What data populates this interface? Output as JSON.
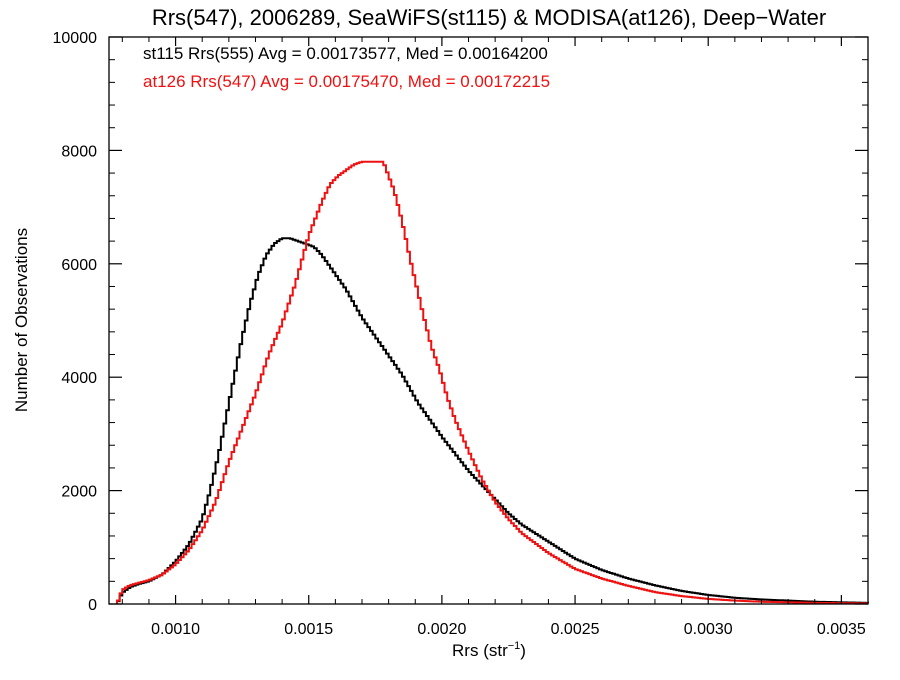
{
  "chart_data": {
    "type": "line",
    "title": "Rrs(547), 2006289, SeaWiFS(st115) & MODISA(at126), Deep−Water",
    "xlabel_main": "Rrs (str",
    "xlabel_sup": "−1",
    "xlabel_close": ")",
    "ylabel": "Number of Observations",
    "xlim": [
      0.00075,
      0.0036
    ],
    "ylim": [
      0,
      10000
    ],
    "x_ticks": [
      0.001,
      0.0015,
      0.002,
      0.0025,
      0.003,
      0.0035
    ],
    "x_tick_labels": [
      "0.0010",
      "0.0015",
      "0.0020",
      "0.0025",
      "0.0030",
      "0.0035"
    ],
    "y_ticks": [
      0,
      2000,
      4000,
      6000,
      8000,
      10000
    ],
    "y_tick_labels": [
      "0",
      "2000",
      "4000",
      "6000",
      "8000",
      "10000"
    ],
    "bin_width": 1e-05,
    "series": [
      {
        "name": "st115 Rrs(555)",
        "color": "#000000",
        "annotation": "st115 Rrs(555) Avg = 0.00173577, Med = 0.00164200",
        "x": [
          0.00078,
          0.0008,
          0.00083,
          0.00086,
          0.0009,
          0.00095,
          0.001,
          0.00105,
          0.0011,
          0.00113,
          0.00116,
          0.00119,
          0.00122,
          0.00125,
          0.00128,
          0.00131,
          0.00134,
          0.00137,
          0.0014,
          0.00143,
          0.00146,
          0.00149,
          0.00152,
          0.00155,
          0.00158,
          0.00161,
          0.00164,
          0.00167,
          0.0017,
          0.00173,
          0.00176,
          0.00179,
          0.00182,
          0.00185,
          0.00188,
          0.00191,
          0.00194,
          0.00197,
          0.002,
          0.00205,
          0.0021,
          0.00215,
          0.0022,
          0.00225,
          0.0023,
          0.0024,
          0.0025,
          0.0026,
          0.0027,
          0.0028,
          0.0029,
          0.003,
          0.0031,
          0.0032,
          0.0033,
          0.0034,
          0.0035,
          0.0036
        ],
        "y": [
          0,
          200,
          300,
          350,
          400,
          520,
          750,
          1050,
          1500,
          2000,
          2600,
          3300,
          4000,
          4700,
          5300,
          5800,
          6150,
          6350,
          6450,
          6450,
          6400,
          6350,
          6300,
          6150,
          5950,
          5750,
          5550,
          5300,
          5050,
          4850,
          4650,
          4450,
          4250,
          4050,
          3800,
          3550,
          3350,
          3150,
          2950,
          2650,
          2350,
          2100,
          1850,
          1600,
          1400,
          1100,
          800,
          600,
          450,
          330,
          230,
          160,
          110,
          80,
          60,
          40,
          30,
          20
        ]
      },
      {
        "name": "at126 Rrs(547)",
        "color": "#ee1111",
        "annotation": "at126 Rrs(547) Avg = 0.00175470, Med = 0.00172215",
        "x": [
          0.00078,
          0.0008,
          0.00083,
          0.00086,
          0.0009,
          0.00095,
          0.001,
          0.00105,
          0.0011,
          0.00115,
          0.0012,
          0.00125,
          0.0013,
          0.00135,
          0.0014,
          0.00145,
          0.0015,
          0.00155,
          0.00158,
          0.00161,
          0.00164,
          0.00167,
          0.0017,
          0.00173,
          0.00176,
          0.00178,
          0.0018,
          0.00182,
          0.00184,
          0.00186,
          0.00188,
          0.0019,
          0.00193,
          0.00196,
          0.00199,
          0.00202,
          0.00205,
          0.0021,
          0.00215,
          0.0022,
          0.00225,
          0.0023,
          0.0024,
          0.0025,
          0.0026,
          0.0027,
          0.0028,
          0.0029,
          0.003,
          0.0031,
          0.0032,
          0.0033,
          0.0034,
          0.0035,
          0.0036
        ],
        "y": [
          0,
          250,
          330,
          370,
          420,
          520,
          700,
          950,
          1300,
          1800,
          2500,
          3100,
          3700,
          4400,
          4950,
          5650,
          6500,
          7100,
          7400,
          7550,
          7650,
          7750,
          7800,
          7800,
          7800,
          7800,
          7550,
          7300,
          6950,
          6550,
          6100,
          5700,
          5100,
          4550,
          4150,
          3650,
          3250,
          2700,
          2200,
          1800,
          1500,
          1250,
          900,
          620,
          450,
          320,
          210,
          140,
          90,
          60,
          40,
          30,
          20,
          15,
          10
        ]
      }
    ]
  }
}
